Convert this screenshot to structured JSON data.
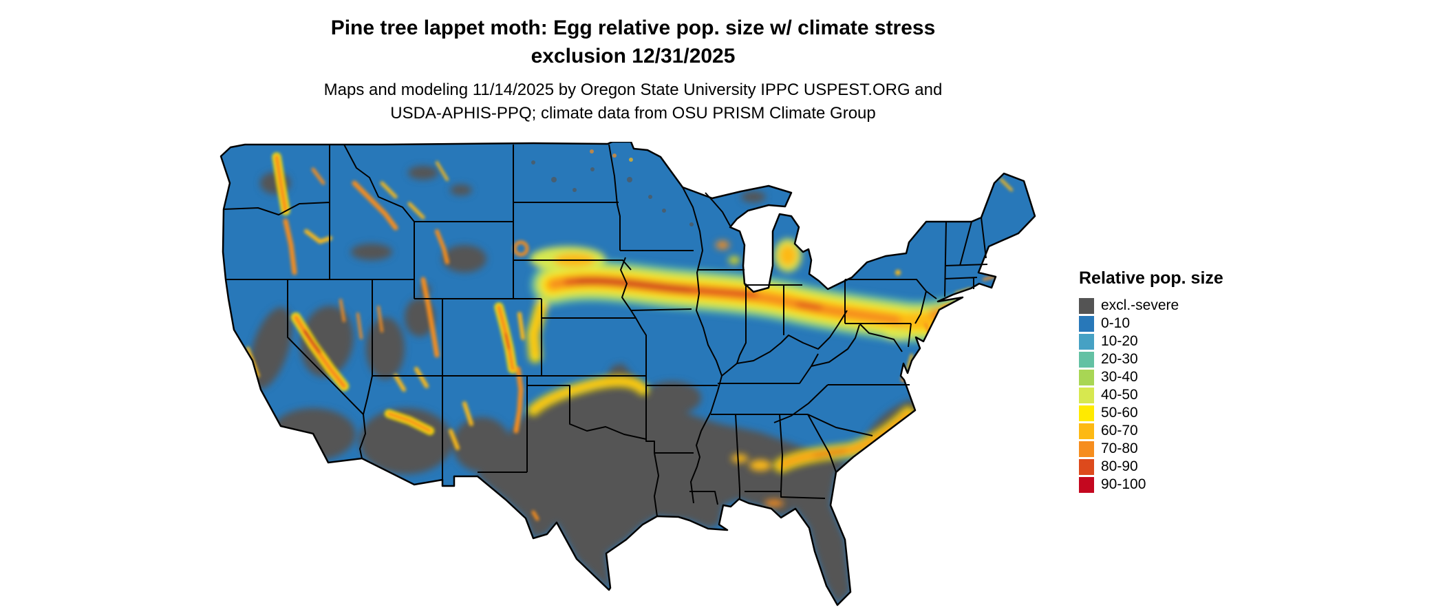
{
  "figure": {
    "title_line1": "Pine tree lappet moth: Egg relative pop. size w/ climate stress",
    "title_line2": "exclusion 12/31/2025",
    "subtitle_line1": "Maps and modeling 11/14/2025 by Oregon State University IPPC USPEST.ORG and",
    "subtitle_line2": "USDA-APHIS-PPQ; climate data from OSU PRISM Climate Group"
  },
  "legend": {
    "title": "Relative pop. size",
    "items": [
      {
        "key": "excl",
        "label": "excl.-severe",
        "color": "#545454"
      },
      {
        "key": "b010",
        "label": "0-10",
        "color": "#2878b9"
      },
      {
        "key": "b1020",
        "label": "10-20",
        "color": "#46a1c4"
      },
      {
        "key": "b2030",
        "label": "20-30",
        "color": "#63c1a3"
      },
      {
        "key": "b3040",
        "label": "30-40",
        "color": "#a8d654"
      },
      {
        "key": "b4050",
        "label": "40-50",
        "color": "#d7e84f"
      },
      {
        "key": "b5060",
        "label": "50-60",
        "color": "#ffea00"
      },
      {
        "key": "b6070",
        "label": "60-70",
        "color": "#fdb913"
      },
      {
        "key": "b7080",
        "label": "70-80",
        "color": "#f68d1e"
      },
      {
        "key": "b8090",
        "label": "80-90",
        "color": "#dd4a1c"
      },
      {
        "key": "b90100",
        "label": "90-100",
        "color": "#c4081f"
      }
    ]
  },
  "map": {
    "region": "Contiguous United States",
    "border_color": "#000000",
    "background_color": "#ffffff"
  }
}
